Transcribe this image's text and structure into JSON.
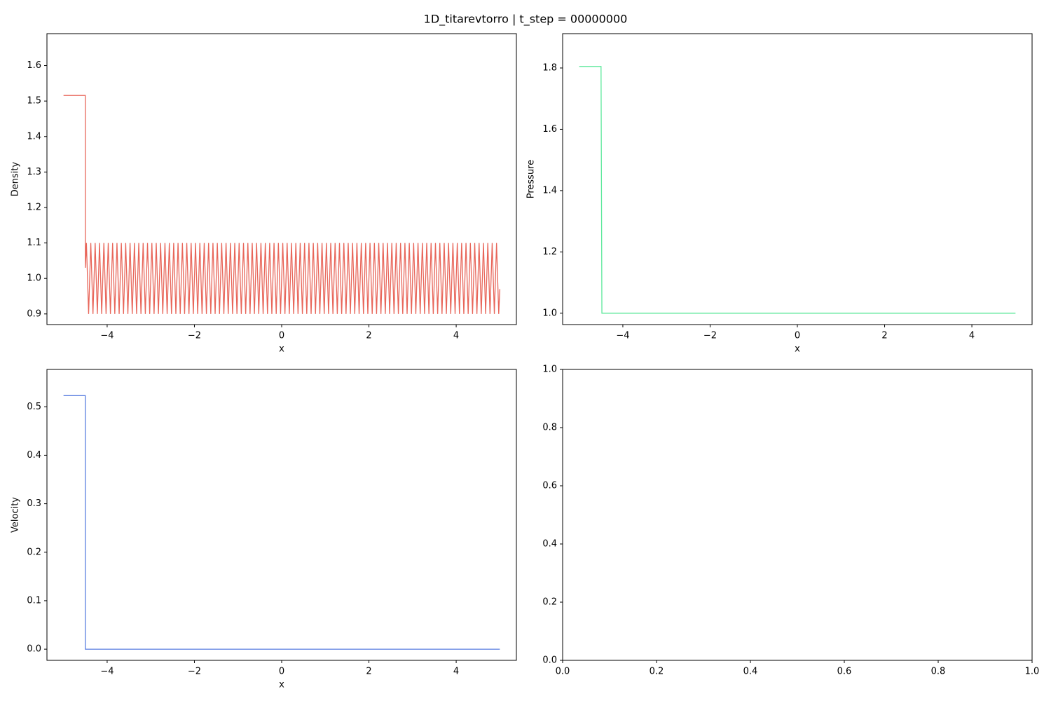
{
  "title": "1D_titarevtorro | t_step = 00000000",
  "chart_data": [
    {
      "type": "line",
      "xlabel": "x",
      "ylabel": "Density",
      "x": [
        -5,
        -4.5,
        -4.5,
        -4.475,
        -4.425,
        -4.375,
        -4.325,
        -4.275,
        -4.225,
        -4.175,
        -4.125,
        -4.075,
        -4.025,
        -3.975,
        -3.925,
        -3.875,
        -3.825,
        -3.775,
        -3.725,
        -3.675,
        -3.625,
        -3.575,
        -3.525,
        -3.475,
        -3.425,
        -3.375,
        -3.325,
        -3.275,
        -3.225,
        -3.175,
        -3.125,
        -3.075,
        -3.025,
        -2.975,
        -2.925,
        -2.875,
        -2.825,
        -2.775,
        -2.725,
        -2.675,
        -2.625,
        -2.575,
        -2.525,
        -2.475,
        -2.425,
        -2.375,
        -2.325,
        -2.275,
        -2.225,
        -2.175,
        -2.125,
        -2.075,
        -2.025,
        -1.975,
        -1.925,
        -1.875,
        -1.825,
        -1.775,
        -1.725,
        -1.675,
        -1.625,
        -1.575,
        -1.525,
        -1.475,
        -1.425,
        -1.375,
        -1.325,
        -1.275,
        -1.225,
        -1.175,
        -1.125,
        -1.075,
        -1.025,
        -0.975,
        -0.925,
        -0.875,
        -0.825,
        -0.775,
        -0.725,
        -0.675,
        -0.625,
        -0.575,
        -0.525,
        -0.475,
        -0.425,
        -0.375,
        -0.325,
        -0.275,
        -0.225,
        -0.175,
        -0.125,
        -0.075,
        -0.025,
        0.025,
        0.075,
        0.125,
        0.175,
        0.225,
        0.275,
        0.325,
        0.375,
        0.425,
        0.475,
        0.525,
        0.575,
        0.625,
        0.675,
        0.725,
        0.775,
        0.825,
        0.875,
        0.925,
        0.975,
        1.025,
        1.075,
        1.125,
        1.175,
        1.225,
        1.275,
        1.325,
        1.375,
        1.425,
        1.475,
        1.525,
        1.575,
        1.625,
        1.675,
        1.725,
        1.775,
        1.825,
        1.875,
        1.925,
        1.975,
        2.025,
        2.075,
        2.125,
        2.175,
        2.225,
        2.275,
        2.325,
        2.375,
        2.425,
        2.475,
        2.525,
        2.575,
        2.625,
        2.675,
        2.725,
        2.775,
        2.825,
        2.875,
        2.925,
        2.975,
        3.025,
        3.075,
        3.125,
        3.175,
        3.225,
        3.275,
        3.325,
        3.375,
        3.425,
        3.475,
        3.525,
        3.575,
        3.625,
        3.675,
        3.725,
        3.775,
        3.825,
        3.875,
        3.925,
        3.975,
        4.025,
        4.075,
        4.125,
        4.175,
        4.225,
        4.275,
        4.325,
        4.375,
        4.425,
        4.475,
        4.525,
        4.575,
        4.625,
        4.675,
        4.725,
        4.775,
        4.825,
        4.875,
        4.925,
        4.975,
        5
      ],
      "series": [
        {
          "name": "Density",
          "color": "#e8665a",
          "values": [
            1.5157,
            1.5157,
            1.03,
            1.1,
            0.9,
            1.1,
            0.9,
            1.1,
            0.9,
            1.1,
            0.9,
            1.1,
            0.9,
            1.1,
            0.9,
            1.1,
            0.9,
            1.1,
            0.9,
            1.1,
            0.9,
            1.1,
            0.9,
            1.1,
            0.9,
            1.1,
            0.9,
            1.1,
            0.9,
            1.1,
            0.9,
            1.1,
            0.9,
            1.1,
            0.9,
            1.1,
            0.9,
            1.1,
            0.9,
            1.1,
            0.9,
            1.1,
            0.9,
            1.1,
            0.9,
            1.1,
            0.9,
            1.1,
            0.9,
            1.1,
            0.9,
            1.1,
            0.9,
            1.1,
            0.9,
            1.1,
            0.9,
            1.1,
            0.9,
            1.1,
            0.9,
            1.1,
            0.9,
            1.1,
            0.9,
            1.1,
            0.9,
            1.1,
            0.9,
            1.1,
            0.9,
            1.1,
            0.9,
            1.1,
            0.9,
            1.1,
            0.9,
            1.1,
            0.9,
            1.1,
            0.9,
            1.1,
            0.9,
            1.1,
            0.9,
            1.1,
            0.9,
            1.1,
            0.9,
            1.1,
            0.9,
            1.1,
            0.9,
            1.1,
            0.9,
            1.1,
            0.9,
            1.1,
            0.9,
            1.1,
            0.9,
            1.1,
            0.9,
            1.1,
            0.9,
            1.1,
            0.9,
            1.1,
            0.9,
            1.1,
            0.9,
            1.1,
            0.9,
            1.1,
            0.9,
            1.1,
            0.9,
            1.1,
            0.9,
            1.1,
            0.9,
            1.1,
            0.9,
            1.1,
            0.9,
            1.1,
            0.9,
            1.1,
            0.9,
            1.1,
            0.9,
            1.1,
            0.9,
            1.1,
            0.9,
            1.1,
            0.9,
            1.1,
            0.9,
            1.1,
            0.9,
            1.1,
            0.9,
            1.1,
            0.9,
            1.1,
            0.9,
            1.1,
            0.9,
            1.1,
            0.9,
            1.1,
            0.9,
            1.1,
            0.9,
            1.1,
            0.9,
            1.1,
            0.9,
            1.1,
            0.9,
            1.1,
            0.9,
            1.1,
            0.9,
            1.1,
            0.9,
            1.1,
            0.9,
            1.1,
            0.9,
            1.1,
            0.9,
            1.1,
            0.9,
            1.1,
            0.9,
            1.1,
            0.9,
            1.1,
            0.9,
            1.1,
            0.9,
            1.1,
            0.9,
            1.1,
            0.9,
            1.1,
            0.9,
            1.1,
            0.9,
            1.1,
            0.9,
            0.97
          ]
        }
      ],
      "xlim": [
        -5.38,
        5.38
      ],
      "xticks": [
        {
          "value": -4,
          "label": "−4"
        },
        {
          "value": -2,
          "label": "−2"
        },
        0,
        2,
        4
      ],
      "ylim": [
        0.87,
        1.69
      ],
      "yticks": [
        0.9,
        {
          "value": 1.0,
          "label": "1.0"
        },
        1.1,
        1.2,
        1.3,
        1.4,
        1.5,
        1.6
      ]
    },
    {
      "type": "line",
      "xlabel": "x",
      "ylabel": "Pressure",
      "x": [
        -5,
        -4.5,
        -4.48,
        5
      ],
      "series": [
        {
          "name": "Pressure",
          "color": "#5ce89b",
          "values": [
            1.805,
            1.805,
            1.0,
            1.0
          ]
        }
      ],
      "xlim": [
        -5.38,
        5.38
      ],
      "xticks": [
        {
          "value": -4,
          "label": "−4"
        },
        {
          "value": -2,
          "label": "−2"
        },
        0,
        2,
        4
      ],
      "ylim": [
        0.963,
        1.912
      ],
      "yticks": [
        {
          "value": 1.0,
          "label": "1.0"
        },
        1.2,
        1.4,
        1.6,
        1.8
      ]
    },
    {
      "type": "line",
      "xlabel": "x",
      "ylabel": "Velocity",
      "x": [
        -5,
        -4.5,
        -4.5,
        5
      ],
      "series": [
        {
          "name": "Velocity",
          "color": "#5a7fe0",
          "values": [
            0.523,
            0.523,
            0,
            0
          ]
        }
      ],
      "xlim": [
        -5.38,
        5.38
      ],
      "xticks": [
        {
          "value": -4,
          "label": "−4"
        },
        {
          "value": -2,
          "label": "−2"
        },
        0,
        2,
        4
      ],
      "ylim": [
        -0.023,
        0.577
      ],
      "yticks": [
        {
          "value": 0,
          "label": "0.0"
        },
        0.1,
        0.2,
        0.3,
        0.4,
        0.5
      ]
    },
    {
      "type": "line",
      "xlim": [
        0,
        1
      ],
      "xticks": [
        {
          "value": 0,
          "label": "0.0"
        },
        0.2,
        0.4,
        0.6,
        0.8,
        {
          "value": 1,
          "label": "1.0"
        }
      ],
      "ylim": [
        0,
        1
      ],
      "yticks": [
        {
          "value": 0,
          "label": "0.0"
        },
        0.2,
        0.4,
        0.6,
        0.8,
        {
          "value": 1,
          "label": "1.0"
        }
      ]
    }
  ]
}
